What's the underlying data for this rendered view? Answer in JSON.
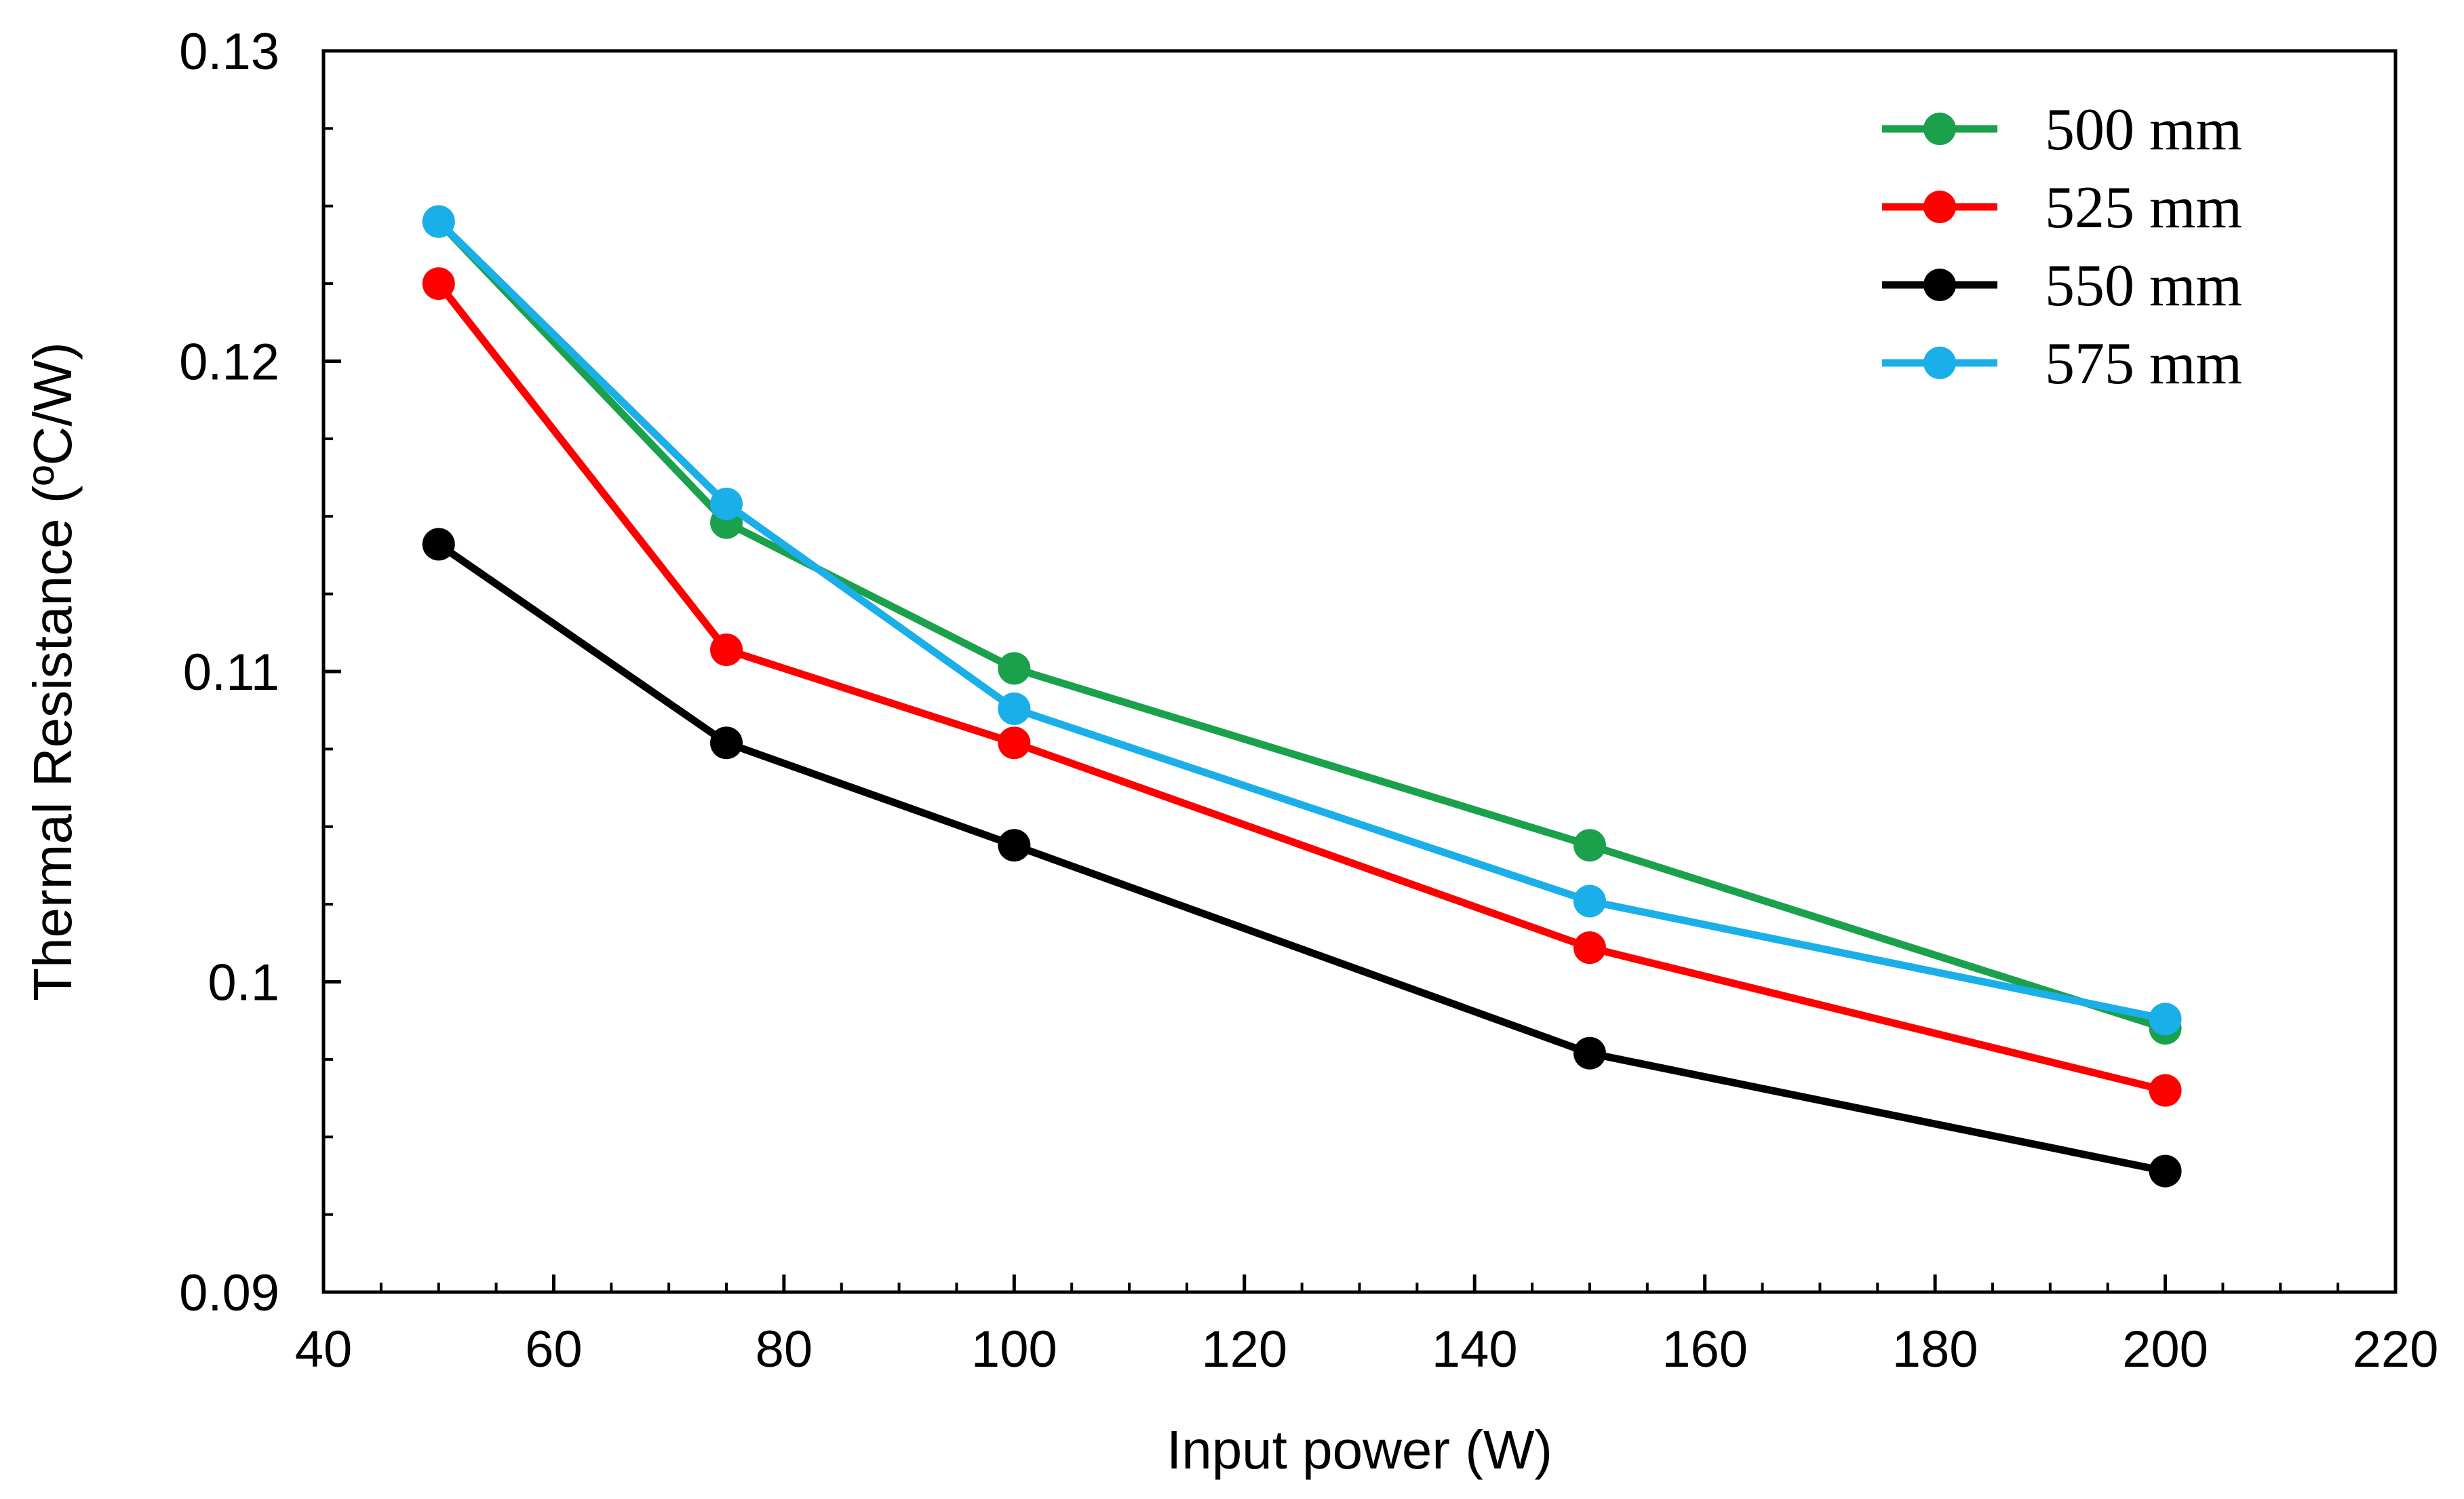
{
  "chart_data": {
    "type": "line",
    "title": "",
    "xlabel": "Input power (W)",
    "ylabel": "Thermal Resistance (ºC/W)",
    "xlim": [
      40,
      220
    ],
    "ylim": [
      0.09,
      0.13
    ],
    "x_ticks": [
      40,
      60,
      80,
      100,
      120,
      140,
      160,
      180,
      200,
      220
    ],
    "x_tick_labels": [
      "40",
      "60",
      "80",
      "100",
      "120",
      "140",
      "160",
      "180",
      "200",
      "220"
    ],
    "y_ticks": [
      0.09,
      0.1,
      0.11,
      0.12,
      0.13
    ],
    "y_tick_labels": [
      "0.09",
      "0.1",
      "0.11",
      "0.12",
      "0.13"
    ],
    "grid": false,
    "legend_position": "top-right",
    "x": [
      50,
      75,
      100,
      150,
      200
    ],
    "series": [
      {
        "name": "500 mm",
        "color": "#1BA04B",
        "values": [
          0.1245,
          0.1148,
          0.1101,
          0.1044,
          0.0985
        ]
      },
      {
        "name": "525 mm",
        "color": "#FF0000",
        "values": [
          0.1225,
          0.1107,
          0.1077,
          0.1011,
          0.0965
        ]
      },
      {
        "name": "550 mm",
        "color": "#000000",
        "values": [
          0.1141,
          0.1077,
          0.1044,
          0.0977,
          0.0939
        ]
      },
      {
        "name": "575 mm",
        "color": "#1AAFE8",
        "values": [
          0.1245,
          0.1154,
          0.1088,
          0.1026,
          0.0988
        ]
      }
    ]
  }
}
